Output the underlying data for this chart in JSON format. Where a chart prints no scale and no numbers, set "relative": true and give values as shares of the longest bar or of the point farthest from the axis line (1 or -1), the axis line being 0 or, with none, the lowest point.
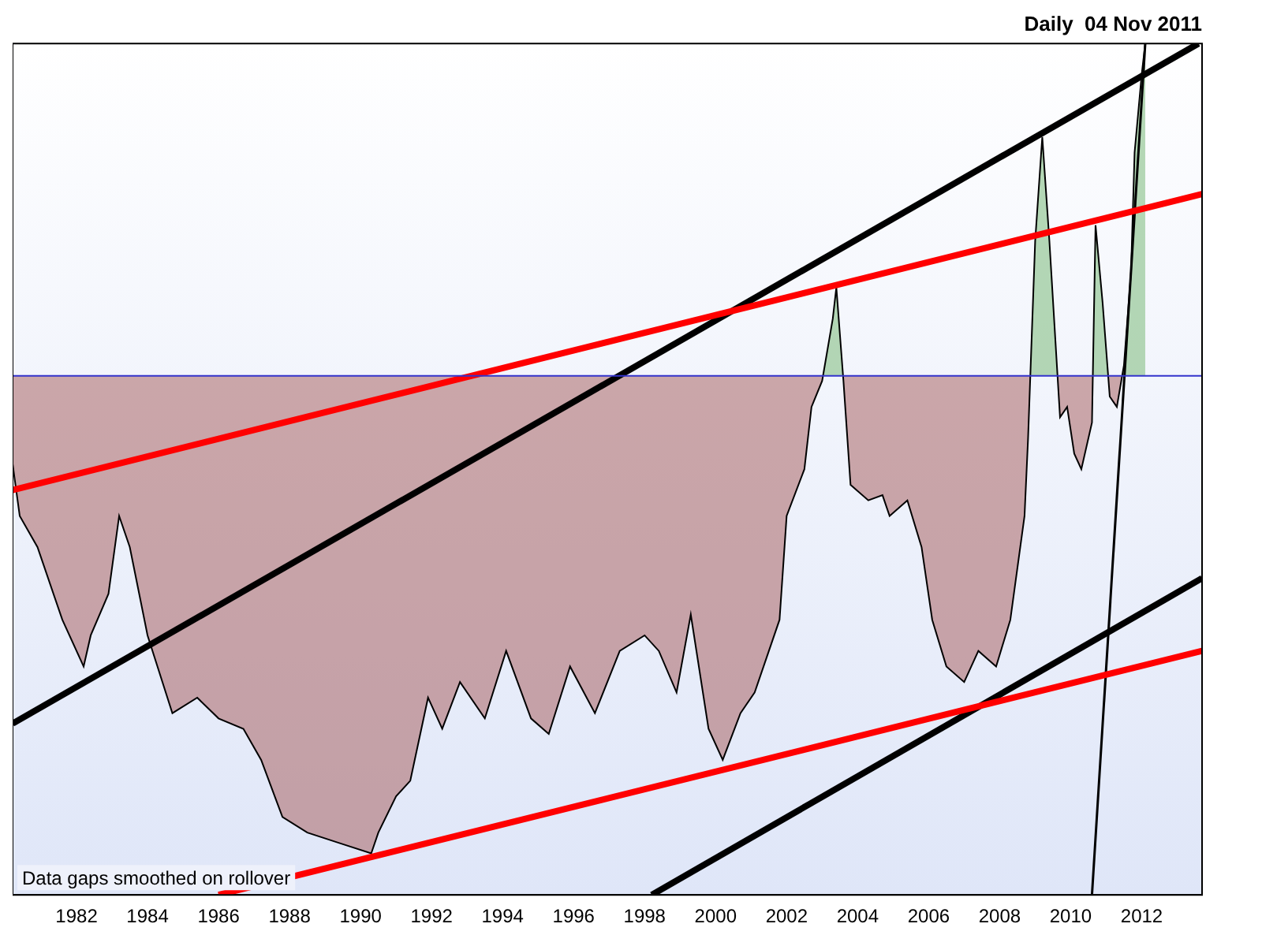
{
  "chart_data": {
    "type": "area",
    "title": "Daily  04 Nov 2011",
    "relative": true,
    "xlim": [
      1980.2,
      2013.7
    ],
    "xticks": [
      1982,
      1984,
      1986,
      1988,
      1990,
      1992,
      1994,
      1996,
      1998,
      2000,
      2002,
      2004,
      2006,
      2008,
      2010,
      2012
    ],
    "grid": false,
    "legend": false,
    "marker": "none",
    "annotations": [
      "Data gaps smoothed on rollover"
    ],
    "ref_lines": [
      {
        "axis": "y",
        "value": 0,
        "color": "#3333cc"
      }
    ],
    "series": [
      {
        "color": "#000000",
        "x": [
          1980.2,
          1980.4,
          1980.9,
          1981.6,
          1982.2,
          1982.4,
          1982.9,
          1983.2,
          1983.5,
          1984.0,
          1984.7,
          1985.4,
          1986.0,
          1986.7,
          1987.2,
          1987.8,
          1988.5,
          1989.4,
          1990.3,
          1990.5,
          1991.0,
          1991.4,
          1991.9,
          1992.3,
          1992.8,
          1993.5,
          1994.1,
          1994.8,
          1995.3,
          1995.9,
          1996.6,
          1997.3,
          1998.0,
          1998.4,
          1998.9,
          1999.3,
          1999.8,
          2000.2,
          2000.7,
          2001.1,
          2001.8,
          2002.0,
          2002.5,
          2002.7,
          2003.0,
          2003.3,
          2003.4,
          2003.6,
          2003.8,
          2004.3,
          2004.7,
          2004.9,
          2005.4,
          2005.8,
          2006.1,
          2006.5,
          2007.0,
          2007.4,
          2007.9,
          2008.3,
          2008.7,
          2008.8,
          2009.0,
          2009.2,
          2009.4,
          2009.7,
          2009.9,
          2010.1,
          2010.3,
          2010.6,
          2010.7,
          2010.9,
          2011.1,
          2011.3,
          2011.5,
          2011.7,
          2011.8,
          2012.0,
          2012.1
        ],
        "values": [
          -0.17,
          -0.27,
          -0.33,
          -0.47,
          -0.56,
          -0.5,
          -0.42,
          -0.27,
          -0.33,
          -0.5,
          -0.65,
          -0.62,
          -0.66,
          -0.68,
          -0.74,
          -0.85,
          -0.88,
          -0.9,
          -0.92,
          -0.88,
          -0.81,
          -0.78,
          -0.62,
          -0.68,
          -0.59,
          -0.66,
          -0.53,
          -0.66,
          -0.69,
          -0.56,
          -0.65,
          -0.53,
          -0.5,
          -0.53,
          -0.61,
          -0.46,
          -0.68,
          -0.74,
          -0.65,
          -0.61,
          -0.47,
          -0.27,
          -0.18,
          -0.06,
          -0.01,
          0.11,
          0.17,
          -0.01,
          -0.21,
          -0.24,
          -0.23,
          -0.27,
          -0.24,
          -0.33,
          -0.47,
          -0.56,
          -0.59,
          -0.53,
          -0.56,
          -0.47,
          -0.27,
          -0.12,
          0.26,
          0.46,
          0.26,
          -0.08,
          -0.06,
          -0.15,
          -0.18,
          -0.09,
          0.29,
          0.14,
          -0.04,
          -0.06,
          0.02,
          0.2,
          0.43,
          0.58,
          0.64
        ]
      },
      {
        "type": "line",
        "color": "#ff0000",
        "x": [
          1980.2,
          2013.7
        ],
        "values": [
          -0.22,
          0.35
        ]
      },
      {
        "type": "line",
        "color": "#000000",
        "x": [
          1980.2,
          2013.6
        ],
        "values": [
          -0.67,
          0.64
        ]
      },
      {
        "type": "line",
        "color": "#ff0000",
        "x": [
          1986.0,
          2013.7
        ],
        "values": [
          -1,
          -0.53
        ]
      },
      {
        "type": "line",
        "color": "#000000",
        "x": [
          1998.2,
          2013.7
        ],
        "values": [
          -1,
          -0.39
        ]
      },
      {
        "type": "line",
        "color": "#000000",
        "line_style": "solid",
        "x": [
          2010.6,
          2012.1
        ],
        "values": [
          -1,
          0.64
        ]
      }
    ]
  }
}
